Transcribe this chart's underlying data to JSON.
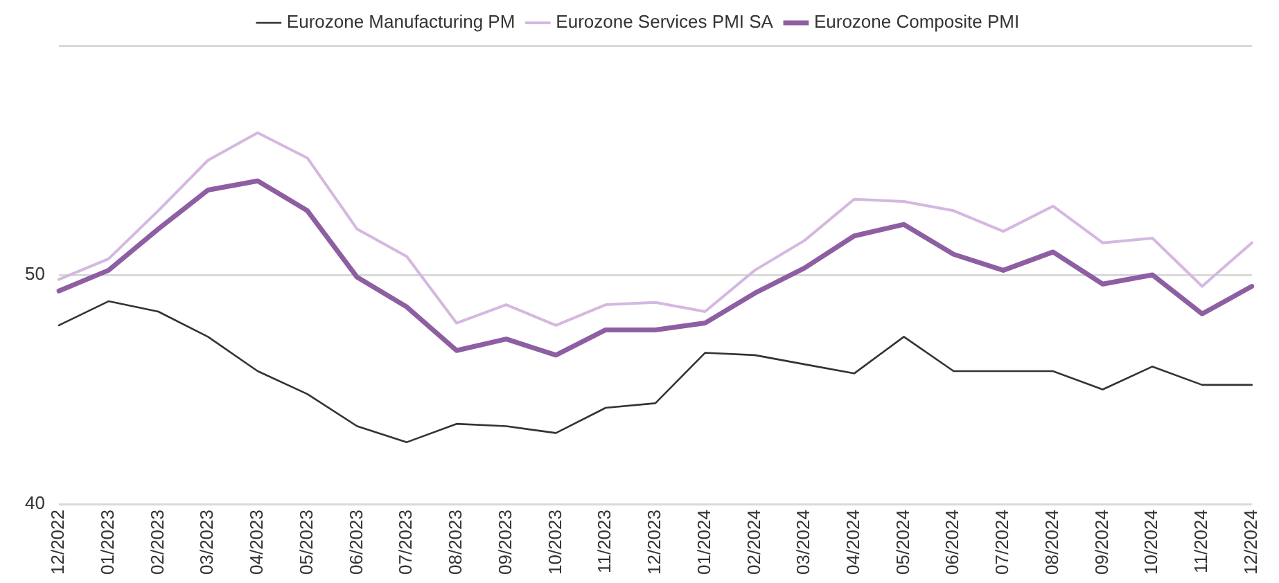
{
  "chart_data": {
    "type": "line",
    "categories": [
      "12/2022",
      "01/2023",
      "02/2023",
      "03/2023",
      "04/2023",
      "05/2023",
      "06/2023",
      "07/2023",
      "08/2023",
      "09/2023",
      "10/2023",
      "11/2023",
      "12/2023",
      "01/2024",
      "02/2024",
      "03/2024",
      "04/2024",
      "05/2024",
      "06/2024",
      "07/2024",
      "08/2024",
      "09/2024",
      "10/2024",
      "11/2024",
      "12/2024"
    ],
    "series": [
      {
        "name": "Eurozone Manufacturing PM",
        "color": "#333333",
        "values": [
          47.8,
          48.85,
          48.4,
          47.3,
          45.8,
          44.8,
          43.4,
          42.7,
          43.5,
          43.4,
          43.1,
          44.2,
          44.4,
          46.6,
          46.5,
          46.1,
          45.7,
          47.3,
          45.8,
          45.8,
          45.8,
          45.0,
          46.0,
          45.2,
          45.2
        ]
      },
      {
        "name": "Eurozone Services PMI SA",
        "color": "#d4b8e0",
        "values": [
          49.8,
          50.7,
          52.8,
          55.0,
          56.2,
          55.1,
          52.0,
          50.8,
          47.9,
          48.7,
          47.8,
          48.7,
          48.8,
          48.4,
          50.2,
          51.5,
          53.3,
          53.2,
          52.8,
          51.9,
          53.0,
          51.4,
          51.6,
          49.5,
          51.4
        ]
      },
      {
        "name": "Eurozone Composite PMI",
        "color": "#8e5ea2",
        "values": [
          49.3,
          50.2,
          52.0,
          53.7,
          54.1,
          52.8,
          49.9,
          48.6,
          46.7,
          47.2,
          46.5,
          47.6,
          47.6,
          47.9,
          49.2,
          50.3,
          51.7,
          52.2,
          50.9,
          50.2,
          51.0,
          49.6,
          50.0,
          48.3,
          49.5
        ]
      }
    ],
    "ylim": [
      40,
      60
    ],
    "yticks": [
      40,
      50,
      {
        "value": 60,
        "label": null
      }
    ],
    "grid": "y",
    "legend": "top",
    "marker": "none",
    "line_style": "solid"
  }
}
